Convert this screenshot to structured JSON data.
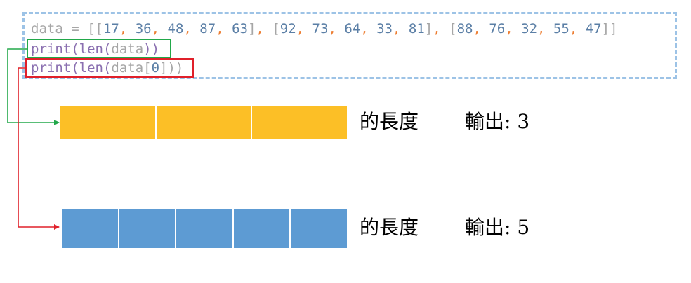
{
  "code": {
    "line1_prefix": "data = [[",
    "arrays": [
      [
        "17",
        "36",
        "48",
        "87",
        "63"
      ],
      [
        "92",
        "73",
        "64",
        "33",
        "81"
      ],
      [
        "88",
        "76",
        "32",
        "55",
        "47"
      ]
    ],
    "line2_fn": "print(len(",
    "line2_arg": "data",
    "line2_close": "))",
    "line3_fn": "print(len(",
    "line3_arg": "data[",
    "line3_index": "0",
    "line3_close": "]))"
  },
  "rows": [
    {
      "cells": 3,
      "color": "#fcbf26",
      "label_length": "的長度",
      "label_output": "輸出: 3"
    },
    {
      "cells": 5,
      "color": "#5d9bd3",
      "label_length": "的長度",
      "label_output": "輸出: 5"
    }
  ],
  "colors": {
    "green_highlight": "#22a84a",
    "red_highlight": "#e0202a",
    "code_border": "#9dc3e6"
  }
}
